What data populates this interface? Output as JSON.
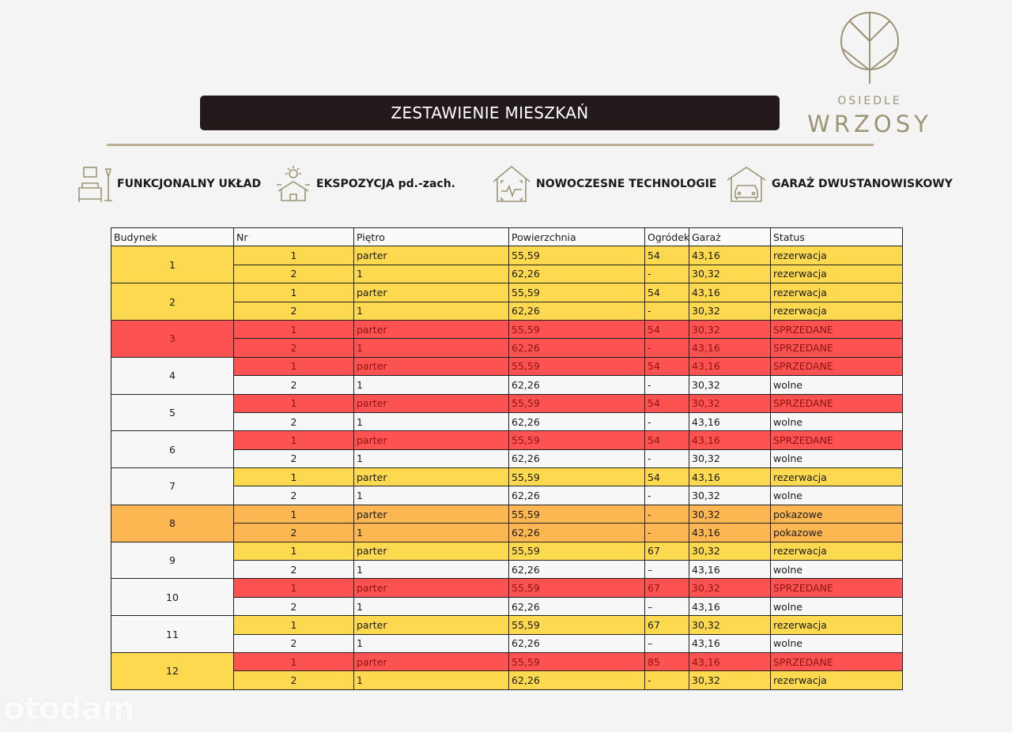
{
  "title": "ZESTAWIENIE MIESZKAŃ",
  "logo": {
    "line1": "OSIEDLE",
    "line2": "WRZOSY"
  },
  "colors": {
    "yellow": "#fcd94f",
    "red": "#fd5252",
    "orange": "#fcb752",
    "white": "#f7f7f7",
    "red_text": "#8a1414",
    "gold": "#9c9474"
  },
  "features": [
    {
      "icon": "furniture-icon",
      "label": "FUNKCJONALNY UKŁAD"
    },
    {
      "icon": "sun-house-icon",
      "label": "EKSPOZYCJA pd.-zach."
    },
    {
      "icon": "smart-home-icon",
      "label": "NOWOCZESNE TECHNOLOGIE"
    },
    {
      "icon": "garage-icon",
      "label": "GARAŻ DWUSTANOWISKOWY"
    }
  ],
  "table": {
    "headers": [
      "Budynek",
      "Nr",
      "Piętro",
      "Powierzchnia",
      "Ogródek",
      "Garaż",
      "Status"
    ],
    "buildings": [
      {
        "name": "1",
        "color": "yellow",
        "units": [
          {
            "nr": "1",
            "floor": "parter",
            "area": "55,59",
            "garden": "54",
            "garage": "43,16",
            "status": "rezerwacja",
            "color": "yellow"
          },
          {
            "nr": "2",
            "floor": "1",
            "area": "62,26",
            "garden": "-",
            "garage": "30,32",
            "status": "rezerwacja",
            "color": "yellow"
          }
        ]
      },
      {
        "name": "2",
        "color": "yellow",
        "units": [
          {
            "nr": "1",
            "floor": "parter",
            "area": "55,59",
            "garden": "54",
            "garage": "43,16",
            "status": "rezerwacja",
            "color": "yellow"
          },
          {
            "nr": "2",
            "floor": "1",
            "area": "62,26",
            "garden": "-",
            "garage": "30,32",
            "status": "rezerwacja",
            "color": "yellow"
          }
        ]
      },
      {
        "name": "3",
        "color": "red",
        "units": [
          {
            "nr": "1",
            "floor": "parter",
            "area": "55,59",
            "garden": "54",
            "garage": "30,32",
            "status": "SPRZEDANE",
            "color": "red"
          },
          {
            "nr": "2",
            "floor": "1",
            "area": "62,26",
            "garden": "-",
            "garage": "43,16",
            "status": "SPRZEDANE",
            "color": "red"
          }
        ]
      },
      {
        "name": "4",
        "color": "white",
        "units": [
          {
            "nr": "1",
            "floor": "parter",
            "area": "55,59",
            "garden": "54",
            "garage": "43,16",
            "status": "SPRZEDANE",
            "color": "red"
          },
          {
            "nr": "2",
            "floor": "1",
            "area": "62,26",
            "garden": "-",
            "garage": "30,32",
            "status": "wolne",
            "color": "white"
          }
        ]
      },
      {
        "name": "5",
        "color": "white",
        "units": [
          {
            "nr": "1",
            "floor": "parter",
            "area": "55,59",
            "garden": "54",
            "garage": "30,32",
            "status": "SPRZEDANE",
            "color": "red"
          },
          {
            "nr": "2",
            "floor": "1",
            "area": "62,26",
            "garden": "-",
            "garage": "43,16",
            "status": "wolne",
            "color": "white"
          }
        ]
      },
      {
        "name": "6",
        "color": "white",
        "units": [
          {
            "nr": "1",
            "floor": "parter",
            "area": "55,59",
            "garden": "54",
            "garage": "43,16",
            "status": "SPRZEDANE",
            "color": "red"
          },
          {
            "nr": "2",
            "floor": "1",
            "area": "62,26",
            "garden": "-",
            "garage": "30,32",
            "status": "wolne",
            "color": "white"
          }
        ]
      },
      {
        "name": "7",
        "color": "white",
        "units": [
          {
            "nr": "1",
            "floor": "parter",
            "area": "55,59",
            "garden": "54",
            "garage": "43,16",
            "status": "rezerwacja",
            "color": "yellow"
          },
          {
            "nr": "2",
            "floor": "1",
            "area": "62,26",
            "garden": "-",
            "garage": "30,32",
            "status": "wolne",
            "color": "white"
          }
        ]
      },
      {
        "name": "8",
        "color": "orange",
        "units": [
          {
            "nr": "1",
            "floor": "parter",
            "area": "55,59",
            "garden": "-",
            "garage": "30,32",
            "status": "pokazowe",
            "color": "orange"
          },
          {
            "nr": "2",
            "floor": "1",
            "area": "62,26",
            "garden": "-",
            "garage": "43,16",
            "status": "pokazowe",
            "color": "orange"
          }
        ]
      },
      {
        "name": "9",
        "color": "white",
        "units": [
          {
            "nr": "1",
            "floor": "parter",
            "area": "55,59",
            "garden": "67",
            "garage": "30,32",
            "status": "rezerwacja",
            "color": "yellow"
          },
          {
            "nr": "2",
            "floor": "1",
            "area": "62,26",
            "garden": "–",
            "garage": "43,16",
            "status": "wolne",
            "color": "white"
          }
        ]
      },
      {
        "name": "10",
        "color": "white",
        "units": [
          {
            "nr": "1",
            "floor": "parter",
            "area": "55,59",
            "garden": "67",
            "garage": "30,32",
            "status": "SPRZEDANE",
            "color": "red"
          },
          {
            "nr": "2",
            "floor": "1",
            "area": "62,26",
            "garden": "–",
            "garage": "43,16",
            "status": "wolne",
            "color": "white"
          }
        ]
      },
      {
        "name": "11",
        "color": "white",
        "units": [
          {
            "nr": "1",
            "floor": "parter",
            "area": "55,59",
            "garden": "67",
            "garage": "30,32",
            "status": "rezerwacja",
            "color": "yellow"
          },
          {
            "nr": "2",
            "floor": "1",
            "area": "62,26",
            "garden": "–",
            "garage": "43,16",
            "status": "wolne",
            "color": "white"
          }
        ]
      },
      {
        "name": "12",
        "color": "yellow",
        "units": [
          {
            "nr": "1",
            "floor": "parter",
            "area": "55,59",
            "garden": "85",
            "garage": "43,16",
            "status": "SPRZEDANE",
            "color": "red"
          },
          {
            "nr": "2",
            "floor": "1",
            "area": "62,26",
            "garden": "-",
            "garage": "30,32",
            "status": "rezerwacja",
            "color": "yellow"
          }
        ]
      }
    ]
  },
  "watermark": "otodam"
}
